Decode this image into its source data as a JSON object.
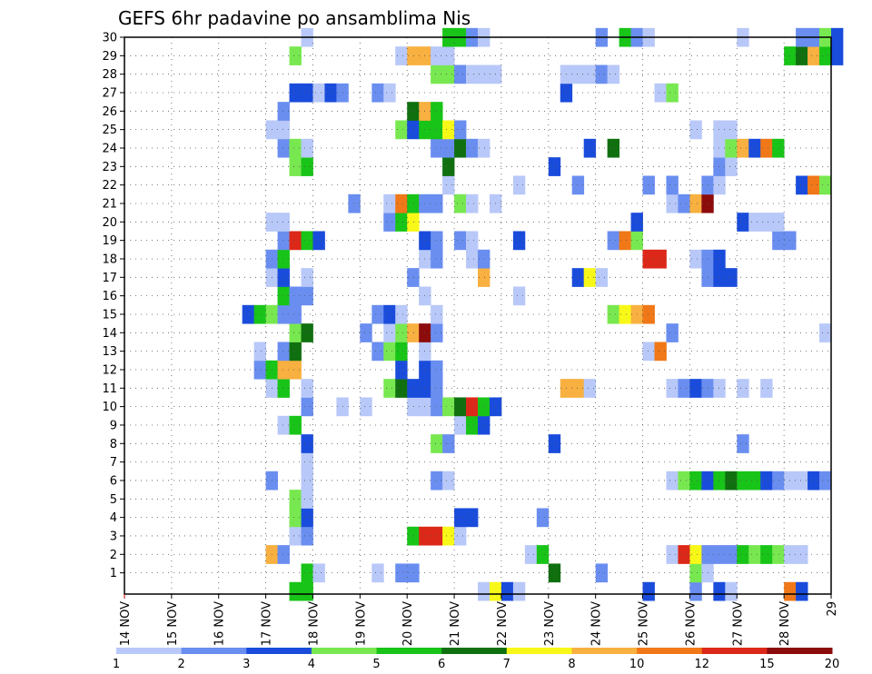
{
  "chart_data": {
    "type": "heatmap",
    "title": "GEFS 6hr padavine po ansamblima Nis",
    "x_ticks": [
      "14 NOV",
      "15 NOV",
      "16 NOV",
      "17 NOV",
      "18 NOV",
      "19 NOV",
      "20 NOV",
      "21 NOV",
      "22 NOV",
      "23 NOV",
      "24 NOV",
      "25 NOV",
      "26 NOV",
      "27 NOV",
      "28 NOV",
      "29"
    ],
    "y_ticks": [
      1,
      2,
      3,
      4,
      5,
      6,
      7,
      8,
      9,
      10,
      11,
      12,
      13,
      14,
      15,
      16,
      17,
      18,
      19,
      20,
      21,
      22,
      23,
      24,
      25,
      26,
      27,
      28,
      29,
      30
    ],
    "colorbar": {
      "labels": [
        "1",
        "2",
        "3",
        "4",
        "5",
        "6",
        "7",
        "8",
        "10",
        "12",
        "15",
        "20"
      ],
      "colors": [
        "#b8c8f8",
        "#6a8ef0",
        "#1a4cdc",
        "#78e850",
        "#18c418",
        "#107010",
        "#f8f818",
        "#f8b040",
        "#f07818",
        "#dc2818",
        "#8c0c0c"
      ]
    },
    "cells": [
      [
        0,
        17.5,
        5
      ],
      [
        0,
        17.75,
        5
      ],
      [
        0,
        21.5,
        1
      ],
      [
        0,
        21.75,
        7
      ],
      [
        0,
        22,
        3
      ],
      [
        0,
        22.25,
        1
      ],
      [
        0,
        25,
        3
      ],
      [
        0,
        26,
        2
      ],
      [
        0,
        26.5,
        3
      ],
      [
        0,
        26.75,
        1
      ],
      [
        0,
        28,
        9
      ],
      [
        0,
        28.25,
        3
      ],
      [
        1,
        17.75,
        5
      ],
      [
        1,
        18,
        1
      ],
      [
        1,
        19.25,
        1
      ],
      [
        1,
        19.75,
        2
      ],
      [
        1,
        20,
        2
      ],
      [
        1,
        23,
        6
      ],
      [
        1,
        24,
        2
      ],
      [
        1,
        26,
        4
      ],
      [
        1,
        26.25,
        1
      ],
      [
        2,
        17,
        8
      ],
      [
        2,
        17.25,
        2
      ],
      [
        2,
        22.5,
        1
      ],
      [
        2,
        22.75,
        5
      ],
      [
        2,
        25.5,
        1
      ],
      [
        2,
        25.75,
        10
      ],
      [
        2,
        26,
        7
      ],
      [
        2,
        26.25,
        2
      ],
      [
        2,
        26.5,
        2
      ],
      [
        2,
        26.75,
        2
      ],
      [
        2,
        27,
        5
      ],
      [
        2,
        27.25,
        4
      ],
      [
        2,
        27.5,
        5
      ],
      [
        2,
        27.75,
        4
      ],
      [
        2,
        28,
        1
      ],
      [
        2,
        28.25,
        1
      ],
      [
        3,
        17.5,
        1
      ],
      [
        3,
        17.75,
        2
      ],
      [
        3,
        20,
        5
      ],
      [
        3,
        20.25,
        10
      ],
      [
        3,
        20.5,
        10
      ],
      [
        3,
        20.75,
        7
      ],
      [
        3,
        21,
        1
      ],
      [
        4,
        17.5,
        4
      ],
      [
        4,
        17.75,
        3
      ],
      [
        4,
        21,
        3
      ],
      [
        4,
        21.25,
        3
      ],
      [
        4,
        22.75,
        2
      ],
      [
        5,
        17.5,
        4
      ],
      [
        5,
        17.75,
        1
      ],
      [
        6,
        17,
        2
      ],
      [
        6,
        17.75,
        1
      ],
      [
        6,
        20.5,
        2
      ],
      [
        6,
        20.75,
        1
      ],
      [
        6,
        25.5,
        1
      ],
      [
        6,
        25.75,
        4
      ],
      [
        6,
        26,
        5
      ],
      [
        6,
        26.25,
        3
      ],
      [
        6,
        26.5,
        5
      ],
      [
        6,
        26.75,
        6
      ],
      [
        6,
        27,
        5
      ],
      [
        6,
        27.25,
        5
      ],
      [
        6,
        27.5,
        3
      ],
      [
        6,
        27.75,
        2
      ],
      [
        6,
        28,
        1
      ],
      [
        6,
        28.25,
        1
      ],
      [
        6,
        28.5,
        3
      ],
      [
        6,
        28.75,
        2
      ],
      [
        7,
        17.75,
        1
      ],
      [
        8,
        17.75,
        3
      ],
      [
        8,
        20.5,
        4
      ],
      [
        8,
        20.75,
        2
      ],
      [
        8,
        23,
        3
      ],
      [
        8,
        27,
        2
      ],
      [
        9,
        17.25,
        1
      ],
      [
        9,
        17.5,
        5
      ],
      [
        9,
        21,
        1
      ],
      [
        9,
        21.25,
        5
      ],
      [
        9,
        21.5,
        3
      ],
      [
        10,
        17.75,
        2
      ],
      [
        10,
        18.5,
        1
      ],
      [
        10,
        19,
        1
      ],
      [
        10,
        20,
        1
      ],
      [
        10,
        20.25,
        1
      ],
      [
        10,
        20.5,
        2
      ],
      [
        10,
        20.75,
        4
      ],
      [
        10,
        21,
        6
      ],
      [
        10,
        21.25,
        10
      ],
      [
        10,
        21.5,
        5
      ],
      [
        10,
        21.75,
        3
      ],
      [
        11,
        17,
        1
      ],
      [
        11,
        17.25,
        5
      ],
      [
        11,
        17.75,
        1
      ],
      [
        11,
        19.5,
        4
      ],
      [
        11,
        19.75,
        6
      ],
      [
        11,
        20,
        3
      ],
      [
        11,
        20.25,
        3
      ],
      [
        11,
        20.5,
        2
      ],
      [
        11,
        23.25,
        8
      ],
      [
        11,
        23.5,
        8
      ],
      [
        11,
        23.75,
        1
      ],
      [
        11,
        25.5,
        1
      ],
      [
        11,
        25.75,
        2
      ],
      [
        11,
        26,
        3
      ],
      [
        11,
        26.25,
        2
      ],
      [
        11,
        26.5,
        1
      ],
      [
        11,
        27,
        1
      ],
      [
        11,
        27.5,
        1
      ],
      [
        12,
        16.75,
        2
      ],
      [
        12,
        17,
        5
      ],
      [
        12,
        17.25,
        8
      ],
      [
        12,
        17.5,
        8
      ],
      [
        12,
        19.75,
        3
      ],
      [
        12,
        20.25,
        3
      ],
      [
        12,
        20.5,
        2
      ],
      [
        13,
        16.75,
        1
      ],
      [
        13,
        17.25,
        2
      ],
      [
        13,
        17.5,
        6
      ],
      [
        13,
        19.25,
        2
      ],
      [
        13,
        19.5,
        4
      ],
      [
        13,
        19.75,
        5
      ],
      [
        13,
        20.25,
        1
      ],
      [
        13,
        25,
        1
      ],
      [
        13,
        25.25,
        9
      ],
      [
        14,
        17.5,
        4
      ],
      [
        14,
        17.75,
        6
      ],
      [
        14,
        19,
        2
      ],
      [
        14,
        19.5,
        1
      ],
      [
        14,
        19.75,
        4
      ],
      [
        14,
        20,
        8
      ],
      [
        14,
        20.25,
        11
      ],
      [
        14,
        20.5,
        2
      ],
      [
        14,
        25.5,
        2
      ],
      [
        14,
        28.75,
        1
      ],
      [
        15,
        16.5,
        3
      ],
      [
        15,
        16.75,
        5
      ],
      [
        15,
        17,
        4
      ],
      [
        15,
        17.25,
        2
      ],
      [
        15,
        17.5,
        2
      ],
      [
        15,
        19.25,
        2
      ],
      [
        15,
        19.5,
        3
      ],
      [
        15,
        19.75,
        1
      ],
      [
        15,
        20.5,
        1
      ],
      [
        15,
        24.25,
        4
      ],
      [
        15,
        24.5,
        7
      ],
      [
        15,
        24.75,
        8
      ],
      [
        15,
        25,
        9
      ],
      [
        16,
        17.25,
        5
      ],
      [
        16,
        17.5,
        2
      ],
      [
        16,
        17.75,
        2
      ],
      [
        16,
        20.25,
        1
      ],
      [
        16,
        22.25,
        1
      ],
      [
        17,
        17,
        1
      ],
      [
        17,
        17.25,
        3
      ],
      [
        17,
        17.75,
        1
      ],
      [
        17,
        20,
        2
      ],
      [
        17,
        21.5,
        8
      ],
      [
        17,
        23.5,
        3
      ],
      [
        17,
        23.75,
        7
      ],
      [
        17,
        24,
        1
      ],
      [
        17,
        26.25,
        2
      ],
      [
        17,
        26.5,
        3
      ],
      [
        17,
        26.75,
        3
      ],
      [
        18,
        17,
        2
      ],
      [
        18,
        17.25,
        5
      ],
      [
        18,
        20.25,
        1
      ],
      [
        18,
        20.5,
        2
      ],
      [
        18,
        21.25,
        1
      ],
      [
        18,
        21.5,
        2
      ],
      [
        18,
        25,
        10
      ],
      [
        18,
        25.25,
        10
      ],
      [
        18,
        26,
        1
      ],
      [
        18,
        26.25,
        2
      ],
      [
        18,
        26.5,
        3
      ],
      [
        19,
        17.25,
        2
      ],
      [
        19,
        17.5,
        10
      ],
      [
        19,
        17.75,
        5
      ],
      [
        19,
        18,
        3
      ],
      [
        19,
        20.25,
        3
      ],
      [
        19,
        20.5,
        2
      ],
      [
        19,
        21,
        2
      ],
      [
        19,
        21.25,
        1
      ],
      [
        19,
        22.25,
        3
      ],
      [
        19,
        24.25,
        2
      ],
      [
        19,
        24.5,
        9
      ],
      [
        19,
        24.75,
        4
      ],
      [
        19,
        27.75,
        2
      ],
      [
        19,
        28,
        2
      ],
      [
        20,
        17,
        1
      ],
      [
        20,
        17.25,
        1
      ],
      [
        20,
        19.5,
        2
      ],
      [
        20,
        19.75,
        5
      ],
      [
        20,
        20,
        7
      ],
      [
        20,
        24.75,
        3
      ],
      [
        20,
        27,
        3
      ],
      [
        20,
        27.25,
        1
      ],
      [
        20,
        27.5,
        1
      ],
      [
        20,
        27.75,
        1
      ],
      [
        21,
        18.75,
        2
      ],
      [
        21,
        19.5,
        1
      ],
      [
        21,
        19.75,
        9
      ],
      [
        21,
        20,
        5
      ],
      [
        21,
        20.25,
        2
      ],
      [
        21,
        20.5,
        2
      ],
      [
        21,
        21,
        4
      ],
      [
        21,
        21.25,
        1
      ],
      [
        21,
        21.75,
        1
      ],
      [
        21,
        25.5,
        1
      ],
      [
        21,
        25.75,
        2
      ],
      [
        21,
        26,
        8
      ],
      [
        21,
        26.25,
        11
      ],
      [
        22,
        20.75,
        1
      ],
      [
        22,
        22.25,
        1
      ],
      [
        22,
        23.5,
        2
      ],
      [
        22,
        25,
        2
      ],
      [
        22,
        25.5,
        2
      ],
      [
        22,
        26.25,
        2
      ],
      [
        22,
        26.5,
        1
      ],
      [
        22,
        28.25,
        3
      ],
      [
        22,
        28.5,
        9
      ],
      [
        22,
        28.75,
        4
      ],
      [
        23,
        17.5,
        4
      ],
      [
        23,
        17.75,
        5
      ],
      [
        23,
        20.75,
        6
      ],
      [
        23,
        23,
        3
      ],
      [
        23,
        26.5,
        2
      ],
      [
        23,
        26.75,
        1
      ],
      [
        24,
        17.25,
        2
      ],
      [
        24,
        17.5,
        4
      ],
      [
        24,
        17.75,
        1
      ],
      [
        24,
        20.5,
        2
      ],
      [
        24,
        20.75,
        2
      ],
      [
        24,
        21,
        6
      ],
      [
        24,
        21.25,
        2
      ],
      [
        24,
        21.5,
        1
      ],
      [
        24,
        23.75,
        3
      ],
      [
        24,
        24.25,
        6
      ],
      [
        24,
        26.5,
        1
      ],
      [
        24,
        26.75,
        4
      ],
      [
        24,
        27,
        8
      ],
      [
        24,
        27.25,
        3
      ],
      [
        24,
        27.5,
        9
      ],
      [
        24,
        27.75,
        5
      ],
      [
        25,
        17,
        1
      ],
      [
        25,
        17.25,
        1
      ],
      [
        25,
        19.75,
        4
      ],
      [
        25,
        20,
        3
      ],
      [
        25,
        20.25,
        5
      ],
      [
        25,
        20.5,
        5
      ],
      [
        25,
        20.75,
        7
      ],
      [
        25,
        21,
        2
      ],
      [
        25,
        26,
        1
      ],
      [
        25,
        26.5,
        1
      ],
      [
        25,
        26.75,
        1
      ],
      [
        26,
        17.25,
        2
      ],
      [
        26,
        20,
        6
      ],
      [
        26,
        20.25,
        8
      ],
      [
        26,
        20.5,
        5
      ],
      [
        27,
        17.5,
        3
      ],
      [
        27,
        17.75,
        3
      ],
      [
        27,
        18,
        1
      ],
      [
        27,
        18.25,
        3
      ],
      [
        27,
        18.5,
        2
      ],
      [
        27,
        19.25,
        2
      ],
      [
        27,
        19.5,
        1
      ],
      [
        27,
        23.25,
        3
      ],
      [
        27,
        25.25,
        1
      ],
      [
        27,
        25.5,
        4
      ],
      [
        28,
        20.5,
        4
      ],
      [
        28,
        20.75,
        4
      ],
      [
        28,
        21,
        2
      ],
      [
        28,
        21.25,
        1
      ],
      [
        28,
        21.5,
        1
      ],
      [
        28,
        21.75,
        1
      ],
      [
        28,
        23.25,
        1
      ],
      [
        28,
        23.5,
        1
      ],
      [
        28,
        23.75,
        1
      ],
      [
        28,
        24,
        2
      ],
      [
        28,
        24.25,
        1
      ],
      [
        29,
        17.5,
        4
      ],
      [
        29,
        19.75,
        1
      ],
      [
        29,
        20,
        8
      ],
      [
        29,
        20.25,
        8
      ],
      [
        29,
        20.5,
        1
      ],
      [
        29,
        20.75,
        1
      ],
      [
        29,
        28,
        5
      ],
      [
        29,
        28.25,
        6
      ],
      [
        29,
        28.5,
        8
      ],
      [
        29,
        28.75,
        5
      ],
      [
        29,
        29,
        3
      ],
      [
        30,
        17.75,
        1
      ],
      [
        30,
        20.75,
        5
      ],
      [
        30,
        21,
        5
      ],
      [
        30,
        21.25,
        2
      ],
      [
        30,
        21.5,
        1
      ],
      [
        30,
        24,
        2
      ],
      [
        30,
        24.5,
        5
      ],
      [
        30,
        24.75,
        2
      ],
      [
        30,
        25,
        1
      ],
      [
        30,
        27,
        1
      ],
      [
        30,
        28.25,
        2
      ],
      [
        30,
        28.5,
        2
      ],
      [
        30,
        28.75,
        4
      ],
      [
        30,
        29,
        3
      ]
    ]
  }
}
